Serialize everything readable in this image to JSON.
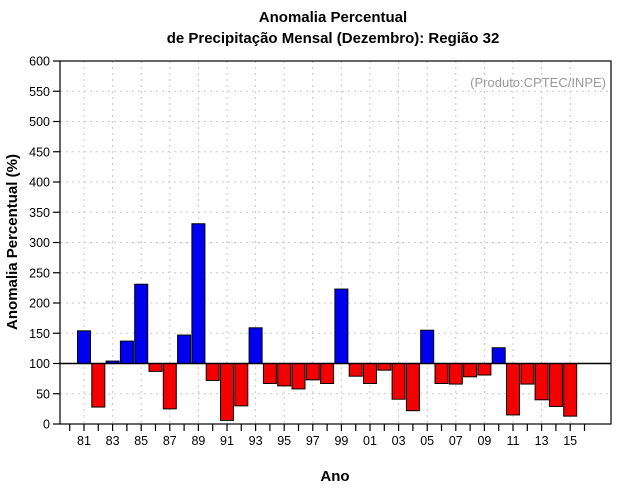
{
  "title": {
    "line1": "Anomalia Percentual",
    "line2": "de Precipitação Mensal (Dezembro): Região 32"
  },
  "annotation": "(Produto:CPTEC/INPE)",
  "chart_data": {
    "type": "bar",
    "title": "Anomalia Percentual de Precipitação Mensal (Dezembro): Região 32",
    "xlabel": "Ano",
    "ylabel": "Anomalia Percentual (%)",
    "ylim": [
      0,
      600
    ],
    "ytick_step": 50,
    "baseline": 100,
    "grid": true,
    "legend": "none",
    "x_axis_years": [
      1980,
      2016
    ],
    "xtick_labels": [
      "81",
      "83",
      "85",
      "87",
      "89",
      "91",
      "93",
      "95",
      "97",
      "99",
      "01",
      "03",
      "05",
      "07",
      "09",
      "11",
      "13",
      "15"
    ],
    "years": [
      1981,
      1982,
      1983,
      1984,
      1985,
      1986,
      1987,
      1988,
      1989,
      1990,
      1991,
      1992,
      1993,
      1994,
      1995,
      1996,
      1997,
      1998,
      1999,
      2000,
      2001,
      2002,
      2003,
      2004,
      2005,
      2006,
      2007,
      2008,
      2009,
      2010,
      2011,
      2012,
      2013,
      2014,
      2015
    ],
    "values": [
      154,
      28,
      104,
      137,
      231,
      87,
      25,
      147,
      331,
      72,
      6,
      30,
      159,
      67,
      63,
      58,
      73,
      67,
      223,
      79,
      67,
      89,
      41,
      22,
      155,
      67,
      66,
      78,
      81,
      126,
      15,
      66,
      40,
      29,
      13
    ],
    "colors": {
      "above_baseline": "#0000f0",
      "below_baseline": "#f50000",
      "bar_border": "#000000",
      "grid": "#c8c8c8",
      "axis": "#000000",
      "annotation_text": "#999999"
    }
  }
}
